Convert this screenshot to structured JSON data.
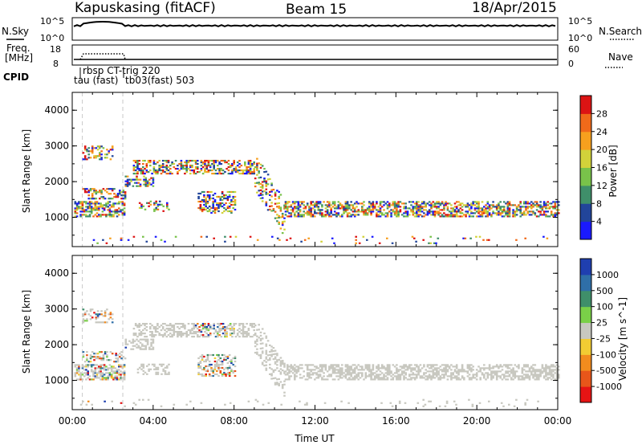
{
  "header": {
    "station_title": "Kapuskasing (fitACF)",
    "beam": "Beam 15",
    "date": "18/Apr/2015"
  },
  "status_panels": {
    "nsky_label": "N.Sky",
    "nsearch_label": "N.Search",
    "noise_ticks_left": [
      "10^5",
      "10^0"
    ],
    "noise_ticks_right": [
      "10^5",
      "10^0"
    ],
    "freq_label_line1": "Freq.",
    "freq_label_line2": "[MHz]",
    "nave_label": "Nave",
    "freq_ticks": [
      "18",
      "8"
    ],
    "nave_ticks": [
      "60",
      "0"
    ],
    "cpid_label": "CPID",
    "cpid_annotations": [
      "rbsp CT-trig 220",
      "tau (fast)",
      "tb03(fast) 503"
    ]
  },
  "chart_data": [
    {
      "type": "heatmap",
      "panel": "power",
      "xlabel": "",
      "ylabel": "Slant Range [km]",
      "y_ticks": [
        "1000",
        "2000",
        "3000",
        "4000"
      ],
      "ylim": [
        180,
        4500
      ],
      "xlim_hours": [
        0,
        24
      ],
      "colorbar_label": "Power [dB]",
      "colorbar_ticks": [
        "4",
        "8",
        "12",
        "16",
        "20",
        "24",
        "28"
      ],
      "colorbar_colors": [
        "#1a1aff",
        "#22459a",
        "#3f8f6a",
        "#79c24a",
        "#d2d23a",
        "#f7a01e",
        "#f06a1a",
        "#dc1414"
      ],
      "dashed_lines_hours": [
        0.5,
        2.5
      ]
    },
    {
      "type": "heatmap",
      "panel": "velocity",
      "xlabel": "Time UT",
      "ylabel": "Slant Range [km]",
      "y_ticks": [
        "1000",
        "2000",
        "3000",
        "4000"
      ],
      "ylim": [
        180,
        4500
      ],
      "xlim_hours": [
        0,
        24
      ],
      "x_ticks": [
        "00:00",
        "04:00",
        "08:00",
        "12:00",
        "16:00",
        "20:00",
        "00:00"
      ],
      "colorbar_label": "Velocity [m s^-1]",
      "colorbar_ticks": [
        "1000",
        "500",
        "100",
        "25",
        "-25",
        "-100",
        "-500",
        "-1000"
      ],
      "colorbar_colors": [
        "#1f3fb0",
        "#2f6fa8",
        "#3f8f6a",
        "#7ad048",
        "#c8c8c0",
        "#f2cc33",
        "#f28c1e",
        "#e8561a",
        "#e61414"
      ],
      "dashed_lines_hours": [
        0.5,
        2.5
      ]
    }
  ]
}
